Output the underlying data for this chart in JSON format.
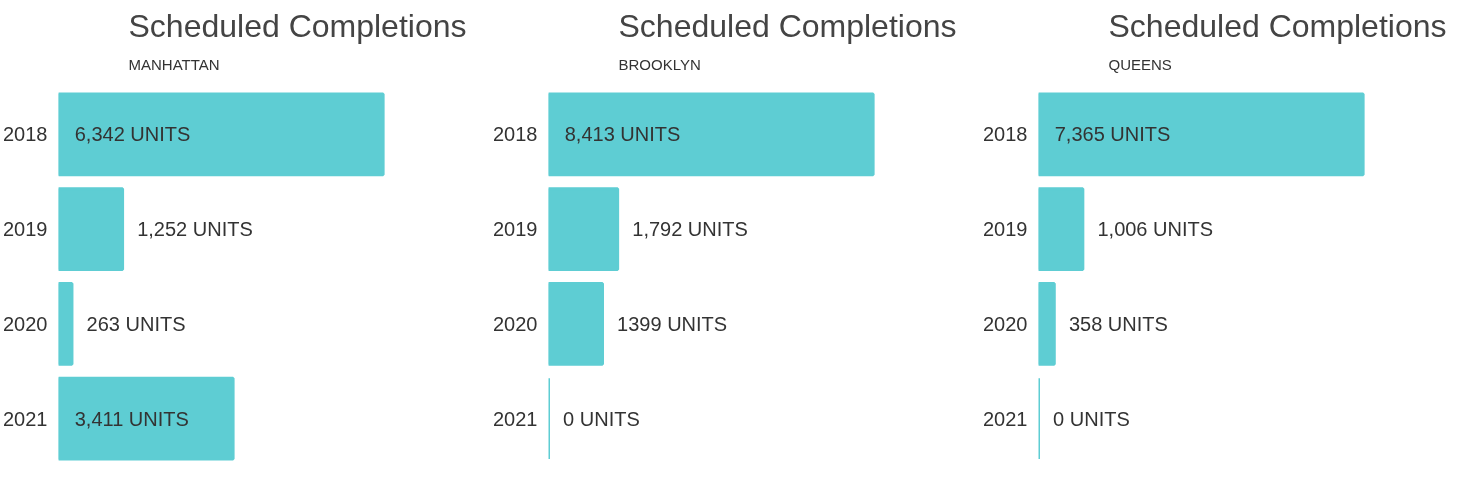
{
  "chart_data": [
    {
      "type": "bar",
      "orientation": "horizontal",
      "title": "Scheduled Completions",
      "subtitle": "MANHATTAN",
      "categories": [
        "2018",
        "2019",
        "2020",
        "2021"
      ],
      "values": [
        6342,
        1252,
        263,
        3411
      ],
      "value_labels": [
        "6,342 UNITS",
        "1,252 UNITS",
        "263 UNITS",
        "3,411 UNITS"
      ],
      "color": "#5ecdd3",
      "tick_labels": "y"
    },
    {
      "type": "bar",
      "orientation": "horizontal",
      "title": "Scheduled Completions",
      "subtitle": "BROOKLYN",
      "categories": [
        "2018",
        "2019",
        "2020",
        "2021"
      ],
      "values": [
        8413,
        1792,
        1399,
        0
      ],
      "value_labels": [
        "8,413 UNITS",
        "1,792 UNITS",
        "1399 UNITS",
        "0 UNITS"
      ],
      "color": "#5ecdd3",
      "tick_labels": "y"
    },
    {
      "type": "bar",
      "orientation": "horizontal",
      "title": "Scheduled Completions",
      "subtitle": "QUEENS",
      "categories": [
        "2018",
        "2019",
        "2020",
        "2021"
      ],
      "values": [
        7365,
        1006,
        358,
        0
      ],
      "value_labels": [
        "7,365 UNITS",
        "1,006 UNITS",
        "358 UNITS",
        "0 UNITS"
      ],
      "color": "#5ecdd3",
      "tick_labels": "y"
    }
  ]
}
